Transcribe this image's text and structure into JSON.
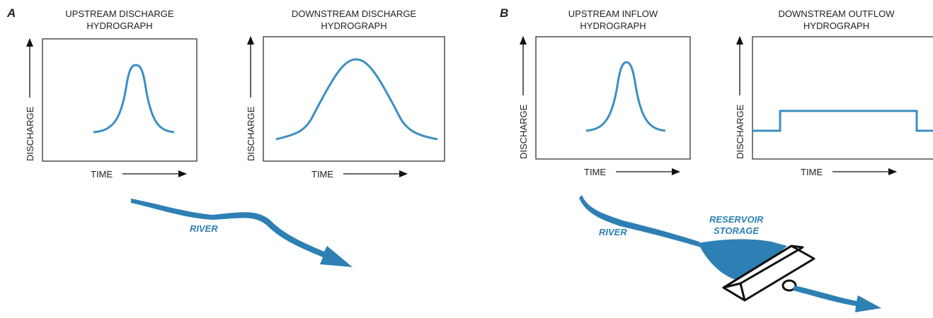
{
  "panels": [
    {
      "label": "A",
      "river_label": "RIVER",
      "charts": [
        {
          "title": [
            "UPSTREAM DISCHARGE",
            "HYDROGRAPH"
          ],
          "y_label": "DISCHARGE",
          "x_label": "TIME"
        },
        {
          "title": [
            "DOWNSTREAM DISCHARGE",
            "HYDROGRAPH"
          ],
          "y_label": "DISCHARGE",
          "x_label": "TIME"
        }
      ]
    },
    {
      "label": "B",
      "river_label": "RIVER",
      "reservoir_label": [
        "RESERVOIR",
        "STORAGE"
      ],
      "charts": [
        {
          "title": [
            "UPSTREAM INFLOW",
            "HYDROGRAPH"
          ],
          "y_label": "DISCHARGE",
          "x_label": "TIME"
        },
        {
          "title": [
            "DOWNSTREAM OUTFLOW",
            "HYDROGRAPH"
          ],
          "y_label": "DISCHARGE",
          "x_label": "TIME"
        }
      ]
    }
  ]
}
